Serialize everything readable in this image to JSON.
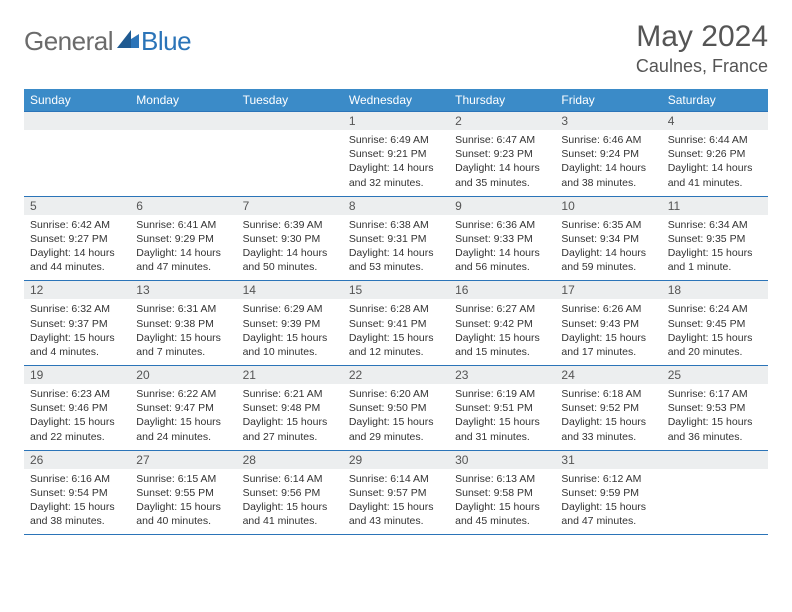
{
  "brand": {
    "general": "General",
    "blue": "Blue"
  },
  "title": "May 2024",
  "location": "Caulnes, France",
  "colors": {
    "header_bg": "#3b8bc8",
    "rule": "#2b74b8",
    "daynum_bg": "#eceeef",
    "text": "#333333",
    "muted": "#555555"
  },
  "weekdays": [
    "Sunday",
    "Monday",
    "Tuesday",
    "Wednesday",
    "Thursday",
    "Friday",
    "Saturday"
  ],
  "weeks": [
    [
      {
        "n": "",
        "sunrise": "",
        "sunset": "",
        "daylight": ""
      },
      {
        "n": "",
        "sunrise": "",
        "sunset": "",
        "daylight": ""
      },
      {
        "n": "",
        "sunrise": "",
        "sunset": "",
        "daylight": ""
      },
      {
        "n": "1",
        "sunrise": "Sunrise: 6:49 AM",
        "sunset": "Sunset: 9:21 PM",
        "daylight": "Daylight: 14 hours and 32 minutes."
      },
      {
        "n": "2",
        "sunrise": "Sunrise: 6:47 AM",
        "sunset": "Sunset: 9:23 PM",
        "daylight": "Daylight: 14 hours and 35 minutes."
      },
      {
        "n": "3",
        "sunrise": "Sunrise: 6:46 AM",
        "sunset": "Sunset: 9:24 PM",
        "daylight": "Daylight: 14 hours and 38 minutes."
      },
      {
        "n": "4",
        "sunrise": "Sunrise: 6:44 AM",
        "sunset": "Sunset: 9:26 PM",
        "daylight": "Daylight: 14 hours and 41 minutes."
      }
    ],
    [
      {
        "n": "5",
        "sunrise": "Sunrise: 6:42 AM",
        "sunset": "Sunset: 9:27 PM",
        "daylight": "Daylight: 14 hours and 44 minutes."
      },
      {
        "n": "6",
        "sunrise": "Sunrise: 6:41 AM",
        "sunset": "Sunset: 9:29 PM",
        "daylight": "Daylight: 14 hours and 47 minutes."
      },
      {
        "n": "7",
        "sunrise": "Sunrise: 6:39 AM",
        "sunset": "Sunset: 9:30 PM",
        "daylight": "Daylight: 14 hours and 50 minutes."
      },
      {
        "n": "8",
        "sunrise": "Sunrise: 6:38 AM",
        "sunset": "Sunset: 9:31 PM",
        "daylight": "Daylight: 14 hours and 53 minutes."
      },
      {
        "n": "9",
        "sunrise": "Sunrise: 6:36 AM",
        "sunset": "Sunset: 9:33 PM",
        "daylight": "Daylight: 14 hours and 56 minutes."
      },
      {
        "n": "10",
        "sunrise": "Sunrise: 6:35 AM",
        "sunset": "Sunset: 9:34 PM",
        "daylight": "Daylight: 14 hours and 59 minutes."
      },
      {
        "n": "11",
        "sunrise": "Sunrise: 6:34 AM",
        "sunset": "Sunset: 9:35 PM",
        "daylight": "Daylight: 15 hours and 1 minute."
      }
    ],
    [
      {
        "n": "12",
        "sunrise": "Sunrise: 6:32 AM",
        "sunset": "Sunset: 9:37 PM",
        "daylight": "Daylight: 15 hours and 4 minutes."
      },
      {
        "n": "13",
        "sunrise": "Sunrise: 6:31 AM",
        "sunset": "Sunset: 9:38 PM",
        "daylight": "Daylight: 15 hours and 7 minutes."
      },
      {
        "n": "14",
        "sunrise": "Sunrise: 6:29 AM",
        "sunset": "Sunset: 9:39 PM",
        "daylight": "Daylight: 15 hours and 10 minutes."
      },
      {
        "n": "15",
        "sunrise": "Sunrise: 6:28 AM",
        "sunset": "Sunset: 9:41 PM",
        "daylight": "Daylight: 15 hours and 12 minutes."
      },
      {
        "n": "16",
        "sunrise": "Sunrise: 6:27 AM",
        "sunset": "Sunset: 9:42 PM",
        "daylight": "Daylight: 15 hours and 15 minutes."
      },
      {
        "n": "17",
        "sunrise": "Sunrise: 6:26 AM",
        "sunset": "Sunset: 9:43 PM",
        "daylight": "Daylight: 15 hours and 17 minutes."
      },
      {
        "n": "18",
        "sunrise": "Sunrise: 6:24 AM",
        "sunset": "Sunset: 9:45 PM",
        "daylight": "Daylight: 15 hours and 20 minutes."
      }
    ],
    [
      {
        "n": "19",
        "sunrise": "Sunrise: 6:23 AM",
        "sunset": "Sunset: 9:46 PM",
        "daylight": "Daylight: 15 hours and 22 minutes."
      },
      {
        "n": "20",
        "sunrise": "Sunrise: 6:22 AM",
        "sunset": "Sunset: 9:47 PM",
        "daylight": "Daylight: 15 hours and 24 minutes."
      },
      {
        "n": "21",
        "sunrise": "Sunrise: 6:21 AM",
        "sunset": "Sunset: 9:48 PM",
        "daylight": "Daylight: 15 hours and 27 minutes."
      },
      {
        "n": "22",
        "sunrise": "Sunrise: 6:20 AM",
        "sunset": "Sunset: 9:50 PM",
        "daylight": "Daylight: 15 hours and 29 minutes."
      },
      {
        "n": "23",
        "sunrise": "Sunrise: 6:19 AM",
        "sunset": "Sunset: 9:51 PM",
        "daylight": "Daylight: 15 hours and 31 minutes."
      },
      {
        "n": "24",
        "sunrise": "Sunrise: 6:18 AM",
        "sunset": "Sunset: 9:52 PM",
        "daylight": "Daylight: 15 hours and 33 minutes."
      },
      {
        "n": "25",
        "sunrise": "Sunrise: 6:17 AM",
        "sunset": "Sunset: 9:53 PM",
        "daylight": "Daylight: 15 hours and 36 minutes."
      }
    ],
    [
      {
        "n": "26",
        "sunrise": "Sunrise: 6:16 AM",
        "sunset": "Sunset: 9:54 PM",
        "daylight": "Daylight: 15 hours and 38 minutes."
      },
      {
        "n": "27",
        "sunrise": "Sunrise: 6:15 AM",
        "sunset": "Sunset: 9:55 PM",
        "daylight": "Daylight: 15 hours and 40 minutes."
      },
      {
        "n": "28",
        "sunrise": "Sunrise: 6:14 AM",
        "sunset": "Sunset: 9:56 PM",
        "daylight": "Daylight: 15 hours and 41 minutes."
      },
      {
        "n": "29",
        "sunrise": "Sunrise: 6:14 AM",
        "sunset": "Sunset: 9:57 PM",
        "daylight": "Daylight: 15 hours and 43 minutes."
      },
      {
        "n": "30",
        "sunrise": "Sunrise: 6:13 AM",
        "sunset": "Sunset: 9:58 PM",
        "daylight": "Daylight: 15 hours and 45 minutes."
      },
      {
        "n": "31",
        "sunrise": "Sunrise: 6:12 AM",
        "sunset": "Sunset: 9:59 PM",
        "daylight": "Daylight: 15 hours and 47 minutes."
      },
      {
        "n": "",
        "sunrise": "",
        "sunset": "",
        "daylight": ""
      }
    ]
  ]
}
